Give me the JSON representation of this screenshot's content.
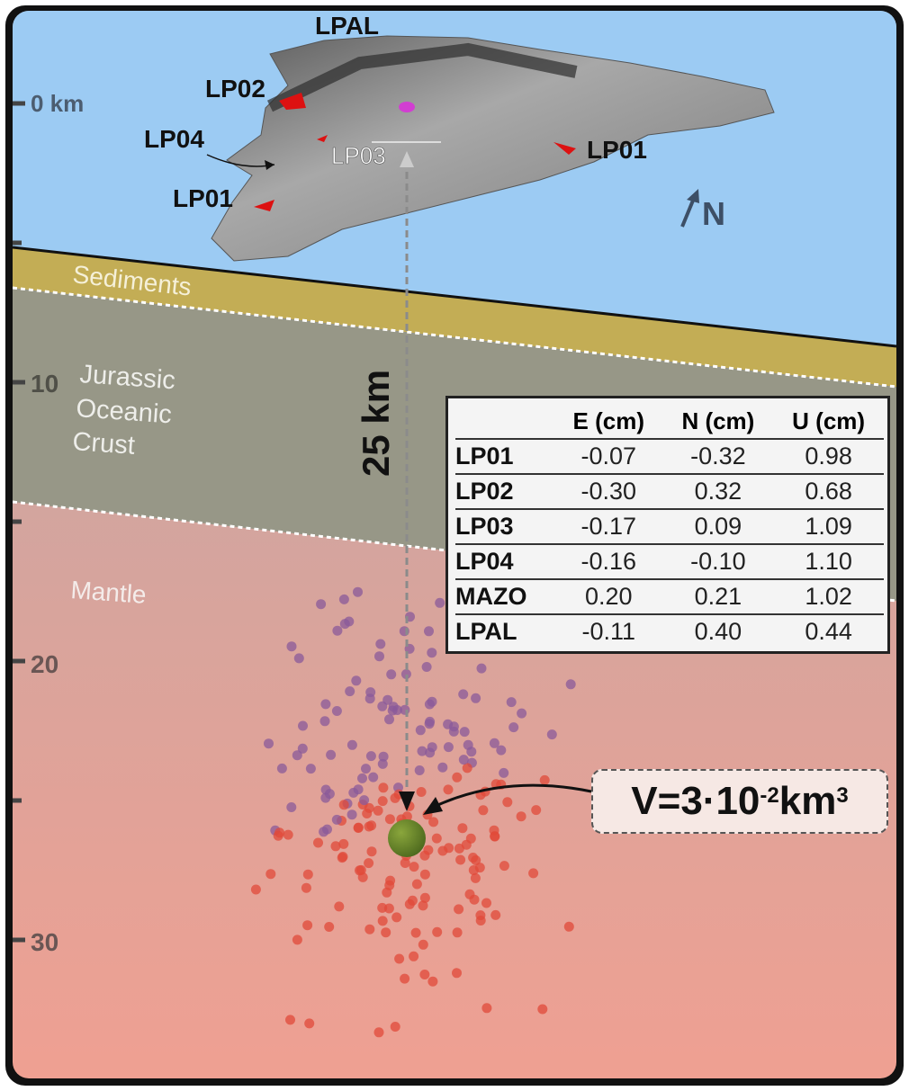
{
  "depth_axis": {
    "ticks": [
      {
        "label": "0 km",
        "km": 0
      },
      {
        "label": "",
        "km": 5
      },
      {
        "label": "10",
        "km": 10
      },
      {
        "label": "",
        "km": 15
      },
      {
        "label": "20",
        "km": 20
      },
      {
        "label": "",
        "km": 25
      },
      {
        "label": "30",
        "km": 30
      }
    ]
  },
  "layers": {
    "sediments": "Sediments",
    "crust": [
      "Jurassic",
      "Oceanic",
      "Crust"
    ],
    "mantle": "Mantle"
  },
  "stations": {
    "lpal": "LPAL",
    "lp02": "LP02",
    "lp04": "LP04",
    "lp03": "LP03",
    "lp01_east": "LP01",
    "lp01_west": "LP01"
  },
  "north": "N",
  "distance_label": "25 km",
  "volume": {
    "prefix": "V=3·10",
    "exp": "-2",
    "unit": " km",
    "unit_exp": "3"
  },
  "table": {
    "headers": [
      "",
      "E (cm)",
      "N (cm)",
      "U (cm)"
    ],
    "rows": [
      [
        "LP01",
        "-0.07",
        "-0.32",
        "0.98"
      ],
      [
        "LP02",
        "-0.30",
        "0.32",
        "0.68"
      ],
      [
        "LP03",
        "-0.17",
        "0.09",
        "1.09"
      ],
      [
        "LP04",
        "-0.16",
        "-0.10",
        "1.10"
      ],
      [
        "MAZO",
        "0.20",
        "0.21",
        "1.02"
      ],
      [
        "LPAL",
        "-0.11",
        "0.40",
        "0.44"
      ]
    ]
  },
  "colors": {
    "ocean": "#9ccbf3",
    "sediments": "#c3ad55",
    "crust": "#979787",
    "mantle_top": "#bdb6b3",
    "mantle_bottom": "#efa092",
    "seismicity_shallow": "#8a5a9a",
    "seismicity_deep": "#e04a3a",
    "source": "#6e8a2c"
  }
}
